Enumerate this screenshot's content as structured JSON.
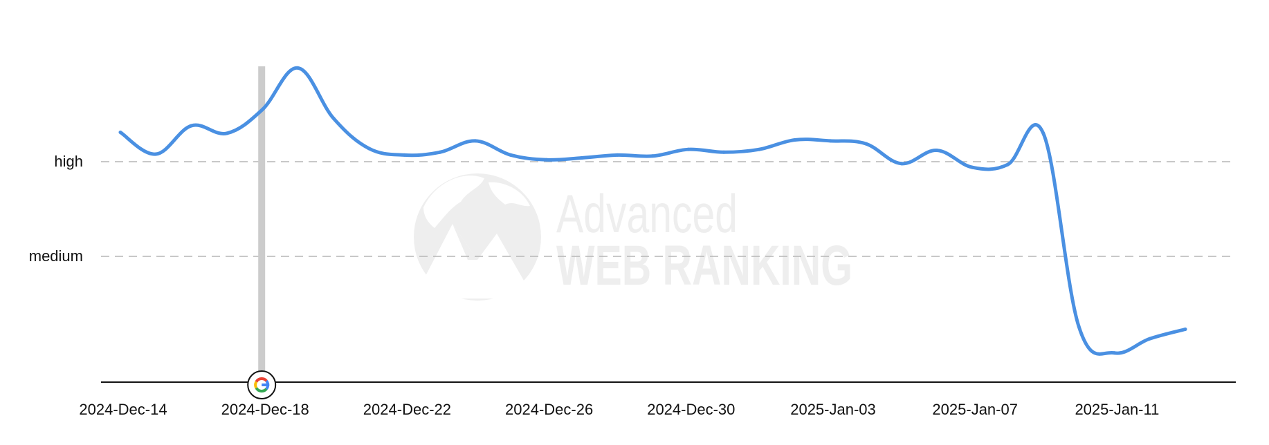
{
  "watermark": {
    "line1": "Advanced",
    "line2": "WEB RANKING"
  },
  "chart_data": {
    "type": "line",
    "title": "",
    "xlabel": "",
    "ylabel": "",
    "x_ticks": [
      "2024-Dec-14",
      "2024-Dec-18",
      "2024-Dec-22",
      "2024-Dec-26",
      "2024-Dec-30",
      "2025-Jan-03",
      "2025-Jan-07",
      "2025-Jan-11"
    ],
    "y_levels": [
      "high",
      "medium"
    ],
    "grid": "horizontal dashed lines at high and medium",
    "series_color": "#4a90e2",
    "marker": {
      "date": "2024-Dec-18",
      "icon": "google-g-icon",
      "colors": [
        "#4285F4",
        "#EA4335",
        "#FBBC05",
        "#34A853"
      ]
    },
    "series": [
      {
        "values": [
          {
            "x": "2024-Dec-14",
            "y": 1.31
          },
          {
            "x": "2024-Dec-15",
            "y": 1.08
          },
          {
            "x": "2024-Dec-16",
            "y": 1.38
          },
          {
            "x": "2024-Dec-17",
            "y": 1.3
          },
          {
            "x": "2024-Dec-18",
            "y": 1.55
          },
          {
            "x": "2024-Dec-19",
            "y": 1.99
          },
          {
            "x": "2024-Dec-20",
            "y": 1.46
          },
          {
            "x": "2024-Dec-21",
            "y": 1.14
          },
          {
            "x": "2024-Dec-22",
            "y": 1.07
          },
          {
            "x": "2024-Dec-23",
            "y": 1.1
          },
          {
            "x": "2024-Dec-24",
            "y": 1.22
          },
          {
            "x": "2024-Dec-25",
            "y": 1.07
          },
          {
            "x": "2024-Dec-26",
            "y": 1.02
          },
          {
            "x": "2024-Dec-27",
            "y": 1.04
          },
          {
            "x": "2024-Dec-28",
            "y": 1.07
          },
          {
            "x": "2024-Dec-29",
            "y": 1.06
          },
          {
            "x": "2024-Dec-30",
            "y": 1.13
          },
          {
            "x": "2024-Dec-31",
            "y": 1.1
          },
          {
            "x": "2025-Jan-01",
            "y": 1.13
          },
          {
            "x": "2025-Jan-02",
            "y": 1.23
          },
          {
            "x": "2025-Jan-03",
            "y": 1.22
          },
          {
            "x": "2025-Jan-04",
            "y": 1.19
          },
          {
            "x": "2025-Jan-05",
            "y": 0.98
          },
          {
            "x": "2025-Jan-06",
            "y": 1.12
          },
          {
            "x": "2025-Jan-07",
            "y": 0.94
          },
          {
            "x": "2025-Jan-08",
            "y": 0.97
          },
          {
            "x": "2025-Jan-09",
            "y": 1.3
          },
          {
            "x": "2025-Jan-10",
            "y": -0.74
          },
          {
            "x": "2025-Jan-11",
            "y": -1.02
          },
          {
            "x": "2025-Jan-12",
            "y": -0.87
          },
          {
            "x": "2025-Jan-13",
            "y": -0.77
          }
        ]
      }
    ]
  }
}
